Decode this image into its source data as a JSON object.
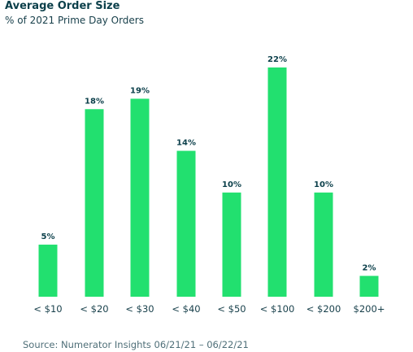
{
  "colors": {
    "bar": "#22e06f",
    "text": "#0b3f4a",
    "muted": "#4f6f78"
  },
  "chart_data": {
    "type": "bar",
    "title": "Average Order Size",
    "subtitle": "% of 2021 Prime Day Orders",
    "categories": [
      "< $10",
      "< $20",
      "< $30",
      "< $40",
      "< $50",
      "< $100",
      "< $200",
      "$200+"
    ],
    "values": [
      5,
      18,
      19,
      14,
      10,
      22,
      10,
      2
    ],
    "data_labels": [
      "5%",
      "18%",
      "19%",
      "14%",
      "10%",
      "22%",
      "10%",
      "2%"
    ],
    "xlabel": "",
    "ylabel": "",
    "ylim": [
      0,
      22
    ],
    "grid": false,
    "legend": "none",
    "source": "Source: Numerator Insights 06/21/21 – 06/22/21"
  }
}
